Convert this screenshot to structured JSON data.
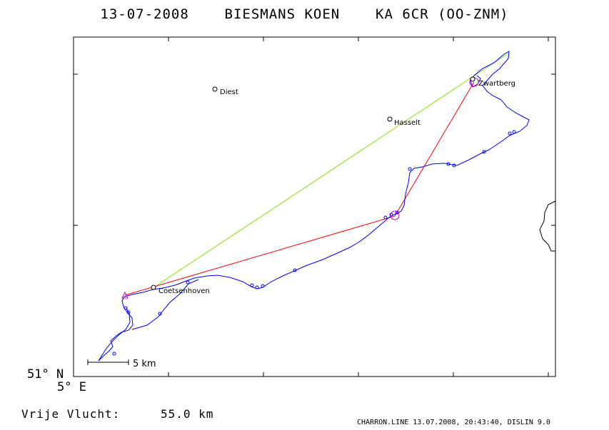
{
  "header": {
    "date": "13-07-2008",
    "pilot": "BIESMANS KOEN",
    "glider": "KA 6CR (OO-ZNM)"
  },
  "axes": {
    "lat_label": "51° N",
    "lon_label": "5° E"
  },
  "places": [
    {
      "name": "Diest"
    },
    {
      "name": "Hasselt"
    },
    {
      "name": "Zwartberg"
    },
    {
      "name": "Coetsenhoven"
    }
  ],
  "scale": {
    "label": "5 km"
  },
  "distance": {
    "label": "Vrije Vlucht:",
    "value": "55.0 km"
  },
  "footer": "CHARRON.LINE 13.07.2008, 20:43:40, DISLIN 9.0",
  "colors": {
    "track": "#0000ff",
    "task_leg": "#ff0000",
    "closing_leg": "#80e000",
    "start_marker": "#cc00cc",
    "frame": "#000000"
  }
}
